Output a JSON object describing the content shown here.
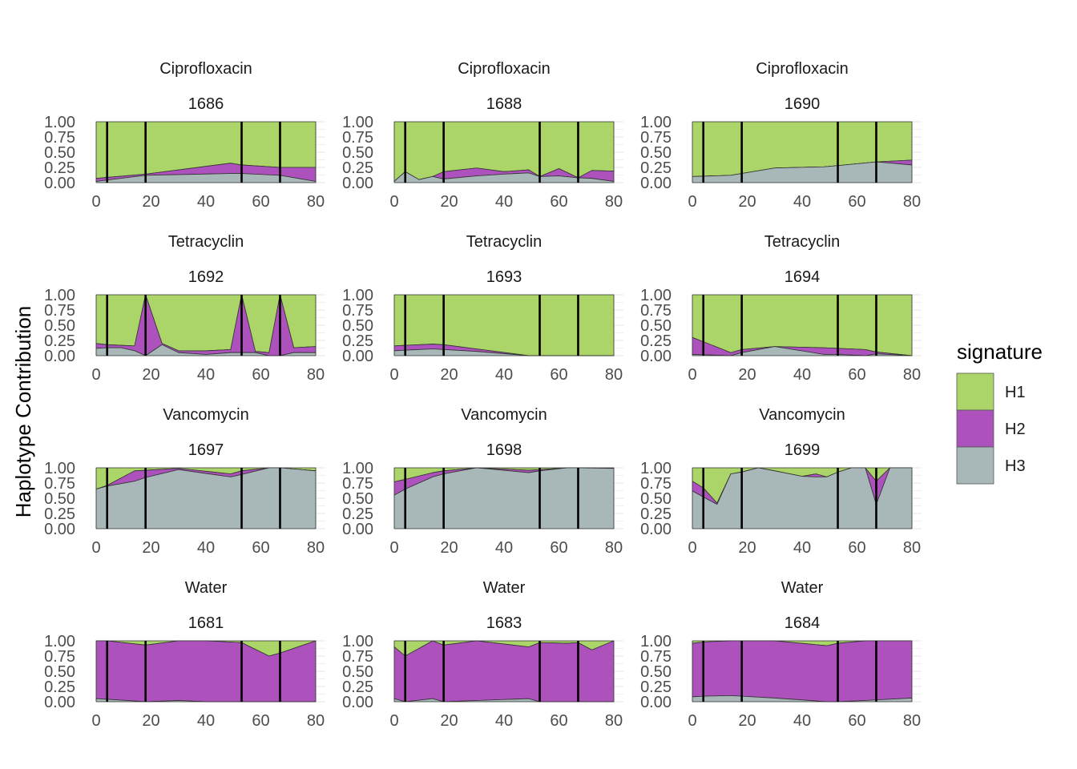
{
  "chart_data": {
    "type": "area",
    "stacked": true,
    "ylabel": "Haplotype Contribution",
    "xlim": [
      0,
      80
    ],
    "ylim": [
      0,
      1
    ],
    "x_ticks": [
      "0",
      "20",
      "40",
      "60",
      "80"
    ],
    "y_ticks": [
      "0.00",
      "0.25",
      "0.50",
      "0.75",
      "1.00"
    ],
    "vlines": [
      4,
      18,
      53,
      67
    ],
    "grid": true,
    "legend": {
      "title": "signature",
      "position": "right",
      "entries": [
        {
          "name": "H1",
          "color": "#abd568"
        },
        {
          "name": "H2",
          "color": "#ad52bc"
        },
        {
          "name": "H3",
          "color": "#a8b8b8"
        }
      ]
    },
    "panels": [
      {
        "treatment": "Ciprofloxacin",
        "id": "1686",
        "x": [
          0,
          18,
          49,
          53,
          67,
          80
        ],
        "H3": [
          0.02,
          0.12,
          0.15,
          0.15,
          0.12,
          0.02
        ],
        "H2": [
          0.05,
          0.02,
          0.17,
          0.14,
          0.13,
          0.23
        ]
      },
      {
        "treatment": "Ciprofloxacin",
        "id": "1688",
        "x": [
          0,
          4,
          9,
          14,
          18,
          30,
          40,
          49,
          53,
          60,
          67,
          72,
          80
        ],
        "H3": [
          0.02,
          0.18,
          0.05,
          0.1,
          0.06,
          0.11,
          0.14,
          0.16,
          0.1,
          0.11,
          0.08,
          0.07,
          0.02
        ],
        "H2": [
          0.0,
          0.0,
          0.0,
          0.0,
          0.12,
          0.13,
          0.04,
          0.05,
          0.0,
          0.12,
          0.0,
          0.13,
          0.17
        ]
      },
      {
        "treatment": "Ciprofloxacin",
        "id": "1690",
        "x": [
          0,
          14,
          30,
          48,
          53,
          67,
          80
        ],
        "H3": [
          0.1,
          0.12,
          0.24,
          0.26,
          0.28,
          0.34,
          0.29
        ],
        "H2": [
          0.0,
          0.0,
          0.0,
          0.0,
          0.0,
          0.0,
          0.08
        ]
      },
      {
        "treatment": "Tetracyclin",
        "id": "1692",
        "x": [
          0,
          4,
          9,
          14,
          18,
          24,
          30,
          40,
          49,
          53,
          58,
          63,
          67,
          72,
          80
        ],
        "H3": [
          0.12,
          0.13,
          0.13,
          0.08,
          0.0,
          0.18,
          0.05,
          0.02,
          0.05,
          0.05,
          0.05,
          0.0,
          0.0,
          0.05,
          0.05
        ],
        "H2": [
          0.08,
          0.05,
          0.04,
          0.08,
          1.0,
          0.02,
          0.03,
          0.06,
          0.05,
          0.95,
          0.02,
          0.05,
          1.0,
          0.08,
          0.1
        ]
      },
      {
        "treatment": "Tetracyclin",
        "id": "1693",
        "x": [
          0,
          4,
          14,
          18,
          30,
          49,
          53,
          67,
          80
        ],
        "H3": [
          0.08,
          0.09,
          0.11,
          0.1,
          0.07,
          0.0,
          0.0,
          0.0,
          0.0
        ],
        "H2": [
          0.08,
          0.08,
          0.08,
          0.08,
          0.04,
          0.0,
          0.0,
          0.0,
          0.0
        ]
      },
      {
        "treatment": "Tetracyclin",
        "id": "1694",
        "x": [
          0,
          14,
          18,
          30,
          48,
          53,
          63,
          67,
          80
        ],
        "H3": [
          0.02,
          0.0,
          0.05,
          0.15,
          0.02,
          0.02,
          0.0,
          0.03,
          0.0
        ],
        "H2": [
          0.28,
          0.05,
          0.05,
          0.0,
          0.11,
          0.1,
          0.1,
          0.03,
          0.0
        ]
      },
      {
        "treatment": "Vancomycin",
        "id": "1697",
        "x": [
          0,
          4,
          14,
          18,
          30,
          49,
          53,
          63,
          67,
          80
        ],
        "H3": [
          0.65,
          0.7,
          0.78,
          0.84,
          0.97,
          0.85,
          0.89,
          1.0,
          1.0,
          0.95
        ],
        "H2": [
          0.0,
          0.01,
          0.17,
          0.12,
          0.02,
          0.05,
          0.06,
          0.0,
          0.0,
          0.0
        ]
      },
      {
        "treatment": "Vancomycin",
        "id": "1698",
        "x": [
          0,
          4,
          14,
          18,
          30,
          49,
          53,
          63,
          67,
          80
        ],
        "H3": [
          0.55,
          0.65,
          0.85,
          0.9,
          1.0,
          0.92,
          0.95,
          1.0,
          1.0,
          0.99
        ],
        "H2": [
          0.22,
          0.16,
          0.07,
          0.05,
          0.0,
          0.04,
          0.02,
          0.0,
          0.0,
          0.0
        ]
      },
      {
        "treatment": "Vancomycin",
        "id": "1699",
        "x": [
          0,
          4,
          9,
          14,
          18,
          24,
          30,
          40,
          45,
          49,
          53,
          58,
          63,
          67,
          72,
          80
        ],
        "H3": [
          0.62,
          0.52,
          0.4,
          0.9,
          0.93,
          1.0,
          0.95,
          0.86,
          0.85,
          0.85,
          0.93,
          1.0,
          1.0,
          0.4,
          1.0,
          1.0
        ],
        "H2": [
          0.16,
          0.15,
          0.02,
          0.0,
          0.0,
          0.0,
          0.0,
          0.0,
          0.05,
          0.0,
          0.0,
          0.0,
          0.0,
          0.38,
          0.0,
          0.0
        ]
      },
      {
        "treatment": "Water",
        "id": "1681",
        "x": [
          0,
          4,
          18,
          30,
          40,
          53,
          63,
          67,
          80
        ],
        "H3": [
          0.05,
          0.04,
          0.0,
          0.02,
          0.0,
          0.0,
          0.0,
          0.0,
          0.0
        ],
        "H2": [
          0.95,
          0.96,
          0.93,
          0.98,
          1.0,
          0.97,
          0.75,
          0.8,
          1.0
        ]
      },
      {
        "treatment": "Water",
        "id": "1683",
        "x": [
          0,
          4,
          14,
          18,
          30,
          49,
          53,
          63,
          67,
          72,
          80
        ],
        "H3": [
          0.05,
          0.0,
          0.05,
          0.0,
          0.02,
          0.05,
          0.0,
          0.0,
          0.0,
          0.0,
          0.0
        ],
        "H2": [
          0.85,
          0.75,
          0.95,
          0.93,
          0.98,
          0.85,
          0.97,
          0.96,
          0.97,
          0.85,
          1.0
        ]
      },
      {
        "treatment": "Water",
        "id": "1684",
        "x": [
          0,
          4,
          14,
          18,
          30,
          49,
          53,
          63,
          67,
          80
        ],
        "H3": [
          0.08,
          0.09,
          0.1,
          0.09,
          0.06,
          0.0,
          0.0,
          0.02,
          0.03,
          0.06
        ],
        "H2": [
          0.88,
          0.89,
          0.9,
          0.91,
          0.94,
          0.92,
          0.96,
          0.98,
          0.97,
          0.94
        ]
      }
    ]
  }
}
